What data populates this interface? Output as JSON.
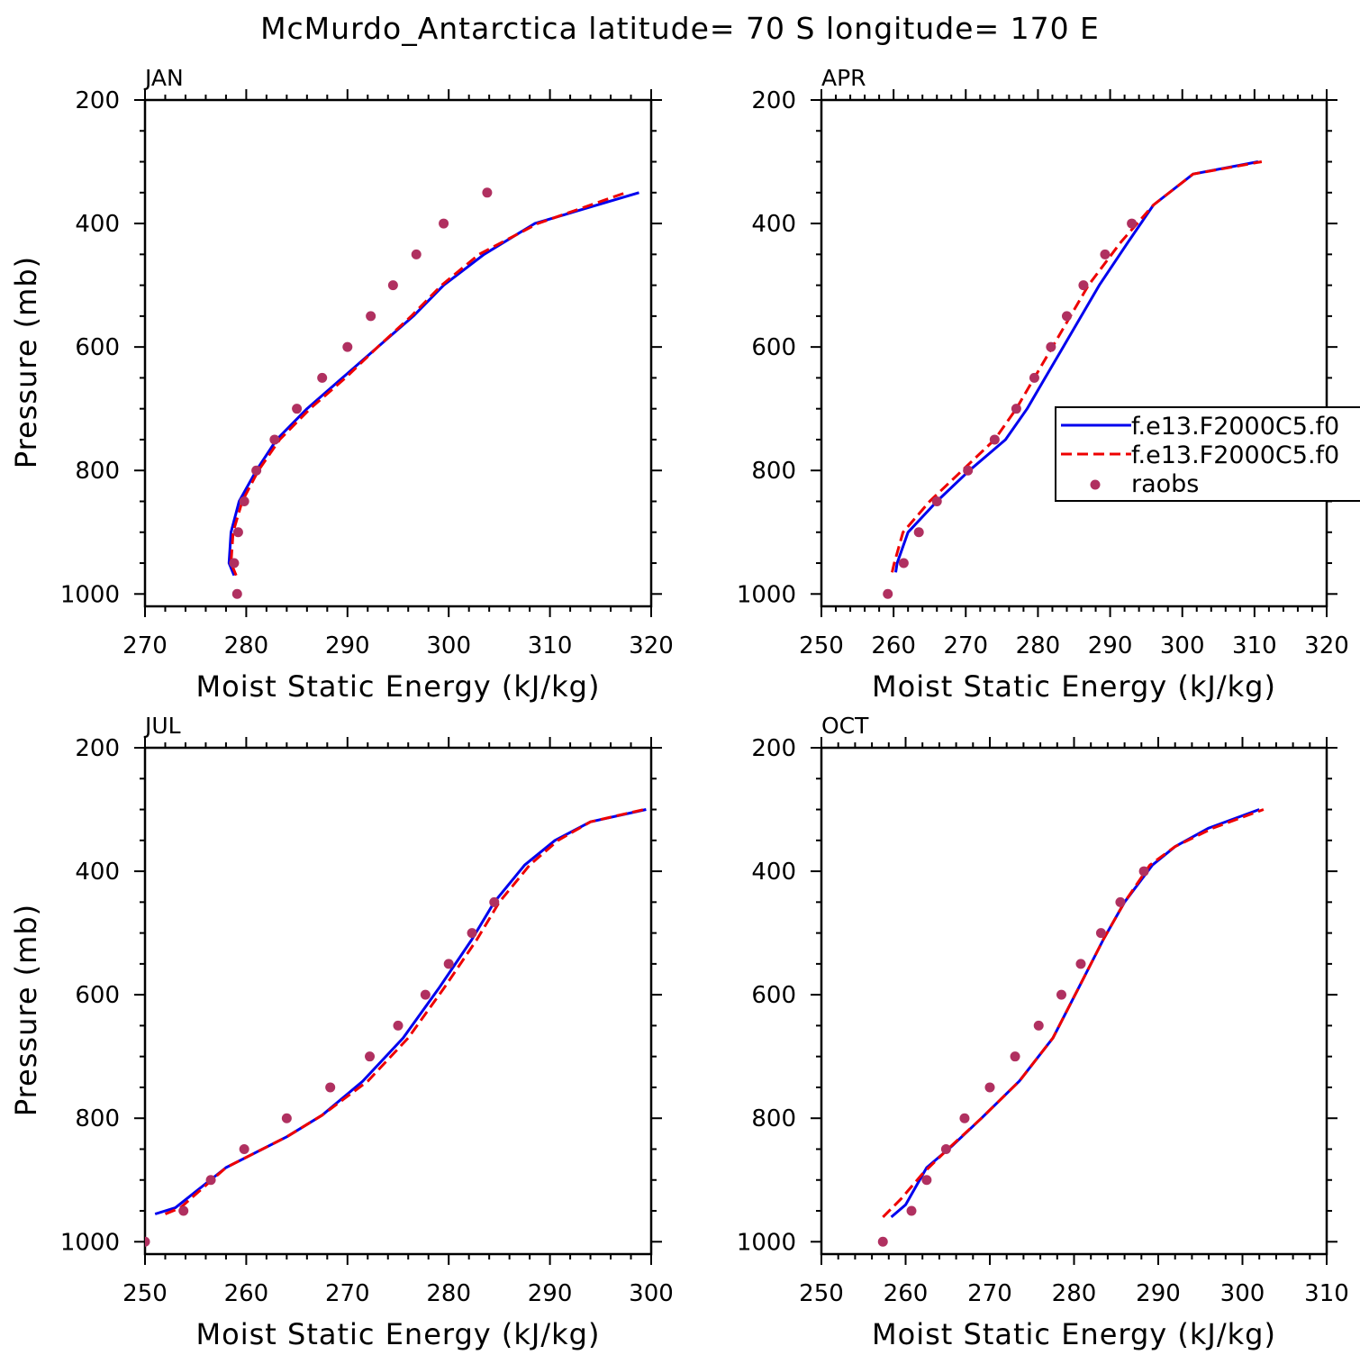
{
  "figure_title": "McMurdo_Antarctica  latitude= 70 S longitude= 170 E",
  "colors": {
    "model1": "#0000ee",
    "model2": "#ee0000",
    "raobs": "#b03060",
    "axis": "#000000"
  },
  "chart_data": [
    {
      "type": "line",
      "panel_label": "JAN",
      "xlabel": "Moist Static Energy (kJ/kg)",
      "ylabel": "Pressure (mb)",
      "xlim": [
        270,
        320
      ],
      "ylim": [
        1020,
        200
      ],
      "y_inverted": true,
      "xticks": [
        270,
        280,
        290,
        300,
        310,
        320
      ],
      "yticks": [
        200,
        400,
        600,
        800,
        1000
      ],
      "series": [
        {
          "name": "f.e13.F2000C5.f0",
          "style": "solid",
          "color": "#0000ee",
          "x": [
            278.8,
            278.3,
            278.5,
            279.3,
            281.0,
            283.0,
            286.0,
            289.5,
            293.0,
            296.5,
            299.5,
            303.5,
            308.5,
            318.8
          ],
          "y": [
            970,
            950,
            900,
            850,
            800,
            750,
            700,
            650,
            600,
            550,
            500,
            450,
            400,
            350
          ]
        },
        {
          "name": "f.e13.F2000C5.f0",
          "style": "dashed",
          "color": "#ee0000",
          "x": [
            279.0,
            278.5,
            278.7,
            279.6,
            281.2,
            283.3,
            286.3,
            289.8,
            293.0,
            296.3,
            299.3,
            303.0,
            308.8,
            317.5
          ],
          "y": [
            970,
            950,
            900,
            850,
            800,
            750,
            700,
            650,
            600,
            550,
            500,
            450,
            400,
            350
          ]
        },
        {
          "name": "raobs",
          "style": "dots",
          "color": "#b03060",
          "x": [
            279.1,
            278.8,
            279.2,
            279.8,
            281.0,
            282.8,
            285.0,
            287.5,
            290.0,
            292.3,
            294.5,
            296.8,
            299.5,
            303.8
          ],
          "y": [
            1000,
            950,
            900,
            850,
            800,
            750,
            700,
            650,
            600,
            550,
            500,
            450,
            400,
            350
          ]
        }
      ]
    },
    {
      "type": "line",
      "panel_label": "APR",
      "xlabel": "Moist Static Energy (kJ/kg)",
      "ylabel": "",
      "xlim": [
        250,
        320
      ],
      "ylim": [
        1020,
        200
      ],
      "y_inverted": true,
      "xticks": [
        250,
        260,
        270,
        280,
        290,
        300,
        310,
        320
      ],
      "yticks": [
        200,
        400,
        600,
        800,
        1000
      ],
      "legend": {
        "position": "right",
        "entries": [
          {
            "label": "f.e13.F2000C5.f0",
            "style": "solid",
            "color": "#0000ee"
          },
          {
            "label": "f.e13.F2000C5.f0",
            "style": "dashed",
            "color": "#ee0000"
          },
          {
            "label": "raobs",
            "style": "dots",
            "color": "#b03060"
          }
        ]
      },
      "series": [
        {
          "name": "f.e13.F2000C5.f0",
          "style": "solid",
          "color": "#0000ee",
          "x": [
            260.3,
            260.5,
            262.0,
            266.0,
            270.5,
            275.5,
            278.5,
            281.0,
            283.5,
            286.0,
            288.5,
            292.5,
            296.0,
            301.5,
            310.5
          ],
          "y": [
            965,
            950,
            900,
            850,
            800,
            750,
            700,
            650,
            600,
            550,
            500,
            430,
            370,
            320,
            300
          ]
        },
        {
          "name": "f.e13.F2000C5.f0",
          "style": "dashed",
          "color": "#ee0000",
          "x": [
            259.8,
            260.1,
            261.3,
            265.0,
            269.5,
            274.0,
            277.0,
            279.5,
            282.0,
            284.5,
            287.0,
            291.5,
            296.0,
            301.5,
            311.0
          ],
          "y": [
            965,
            950,
            900,
            850,
            800,
            750,
            700,
            650,
            600,
            550,
            500,
            430,
            370,
            320,
            300
          ]
        },
        {
          "name": "raobs",
          "style": "dots",
          "color": "#b03060",
          "x": [
            259.2,
            261.4,
            263.5,
            266.0,
            270.3,
            274.0,
            277.0,
            279.5,
            281.8,
            284.0,
            286.3,
            289.3,
            293.0
          ],
          "y": [
            1000,
            950,
            900,
            850,
            800,
            750,
            700,
            650,
            600,
            550,
            500,
            450,
            400
          ]
        }
      ]
    },
    {
      "type": "line",
      "panel_label": "JUL",
      "xlabel": "Moist Static Energy (kJ/kg)",
      "ylabel": "Pressure (mb)",
      "xlim": [
        250,
        300
      ],
      "ylim": [
        1020,
        200
      ],
      "y_inverted": true,
      "xticks": [
        250,
        260,
        270,
        280,
        290,
        300
      ],
      "yticks": [
        200,
        400,
        600,
        800,
        1000
      ],
      "series": [
        {
          "name": "f.e13.F2000C5.f0",
          "style": "solid",
          "color": "#0000ee",
          "x": [
            251.0,
            253.0,
            258.0,
            264.0,
            267.5,
            271.5,
            275.5,
            279.0,
            282.3,
            284.5,
            287.5,
            290.5,
            294.0,
            299.5
          ],
          "y": [
            955,
            945,
            880,
            830,
            795,
            740,
            670,
            590,
            510,
            450,
            390,
            350,
            320,
            300
          ]
        },
        {
          "name": "f.e13.F2000C5.f0",
          "style": "dashed",
          "color": "#ee0000",
          "x": [
            252.0,
            253.5,
            258.0,
            264.0,
            267.5,
            272.0,
            276.0,
            279.5,
            282.8,
            285.0,
            288.0,
            290.8,
            294.0,
            299.3
          ],
          "y": [
            955,
            945,
            880,
            830,
            795,
            740,
            670,
            590,
            510,
            450,
            390,
            350,
            320,
            300
          ]
        },
        {
          "name": "raobs",
          "style": "dots",
          "color": "#b03060",
          "x": [
            250.0,
            253.8,
            256.5,
            259.8,
            264.0,
            268.3,
            272.2,
            275.0,
            277.7,
            280.0,
            282.3,
            284.5
          ],
          "y": [
            1000,
            950,
            900,
            850,
            800,
            750,
            700,
            650,
            600,
            550,
            500,
            450
          ]
        }
      ]
    },
    {
      "type": "line",
      "panel_label": "OCT",
      "xlabel": "Moist Static Energy (kJ/kg)",
      "ylabel": "",
      "xlim": [
        250,
        310
      ],
      "ylim": [
        1020,
        200
      ],
      "y_inverted": true,
      "xticks": [
        250,
        260,
        270,
        280,
        290,
        300,
        310
      ],
      "yticks": [
        200,
        400,
        600,
        800,
        1000
      ],
      "series": [
        {
          "name": "f.e13.F2000C5.f0",
          "style": "solid",
          "color": "#0000ee",
          "x": [
            258.3,
            260.0,
            262.5,
            265.5,
            269.0,
            273.5,
            277.5,
            280.5,
            283.5,
            286.0,
            289.3,
            292.0,
            296.0,
            302.0
          ],
          "y": [
            960,
            940,
            880,
            845,
            800,
            740,
            670,
            590,
            510,
            450,
            390,
            360,
            330,
            300
          ]
        },
        {
          "name": "f.e13.F2000C5.f0",
          "style": "dashed",
          "color": "#ee0000",
          "x": [
            257.3,
            259.5,
            262.0,
            265.0,
            269.0,
            273.5,
            277.5,
            280.5,
            283.5,
            286.0,
            289.0,
            292.0,
            296.5,
            302.5
          ],
          "y": [
            960,
            930,
            890,
            850,
            800,
            740,
            670,
            590,
            510,
            450,
            390,
            360,
            330,
            300
          ]
        },
        {
          "name": "raobs",
          "style": "dots",
          "color": "#b03060",
          "x": [
            257.3,
            260.7,
            262.5,
            264.8,
            267.0,
            270.0,
            273.0,
            275.8,
            278.5,
            280.8,
            283.2,
            285.5,
            288.3
          ],
          "y": [
            1000,
            950,
            900,
            850,
            800,
            750,
            700,
            650,
            600,
            550,
            500,
            450,
            400
          ]
        }
      ]
    }
  ]
}
